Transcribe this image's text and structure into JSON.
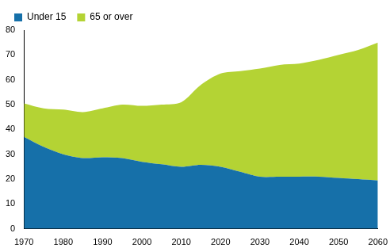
{
  "chart_data": {
    "type": "area",
    "stacked": true,
    "grid": false,
    "legend": "top-left",
    "x": [
      1970,
      1975,
      1980,
      1985,
      1990,
      1995,
      2000,
      2005,
      2010,
      2015,
      2020,
      2025,
      2030,
      2035,
      2040,
      2045,
      2050,
      2055,
      2060
    ],
    "series": [
      {
        "name": "Under 15",
        "color": "#1670a9",
        "values": [
          37,
          33,
          30,
          28.5,
          28.8,
          28.5,
          27,
          26,
          25,
          25.8,
          25,
          23,
          21,
          21,
          21,
          21,
          20.5,
          20,
          19.5
        ]
      },
      {
        "name": "65 or over",
        "color": "#b4d334",
        "values": [
          13.5,
          15.5,
          18,
          18.5,
          19.7,
          21.5,
          22.5,
          24,
          26,
          32.2,
          37.5,
          40.5,
          43.5,
          45,
          45.5,
          47,
          49.5,
          52,
          55.5
        ]
      }
    ],
    "xlim": [
      1970,
      2060
    ],
    "xticks": [
      1970,
      1980,
      1990,
      2000,
      2010,
      2020,
      2030,
      2040,
      2050,
      2060
    ],
    "ylim": [
      0,
      80
    ],
    "yticks": [
      0,
      10,
      20,
      30,
      40,
      50,
      60,
      70,
      80
    ]
  }
}
